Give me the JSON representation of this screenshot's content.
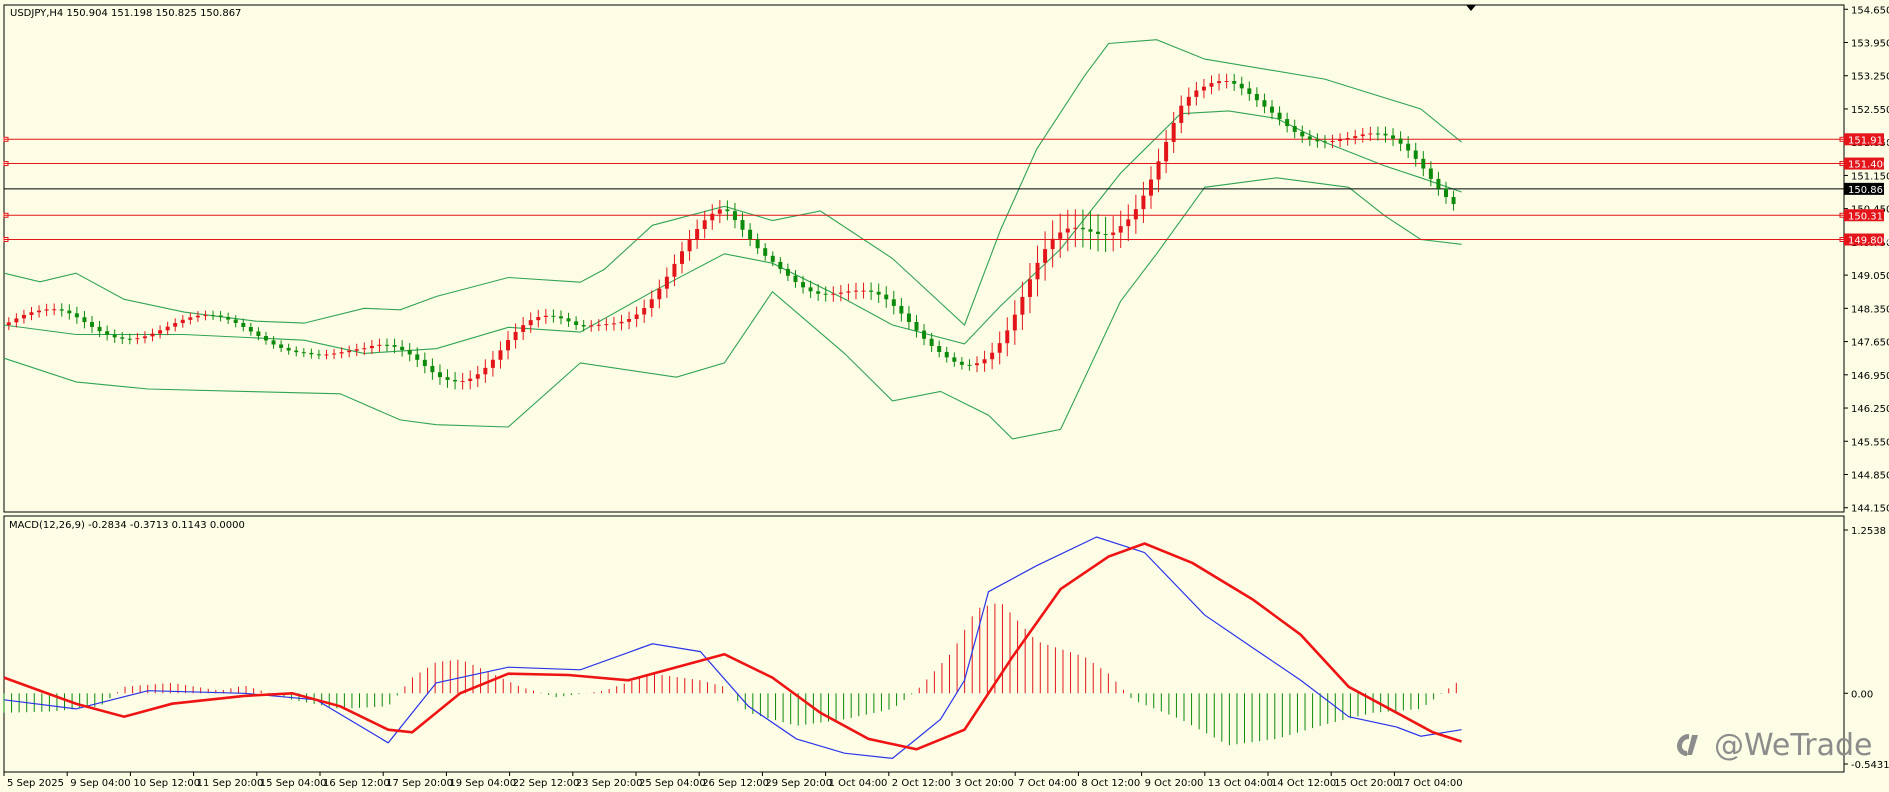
{
  "colors": {
    "background": "#fdfde6",
    "frame": "#000000",
    "bull": "#0b8a0b",
    "bear": "#e3151a",
    "bands": "#31a354",
    "level": "#e3151a",
    "price_line": "#000000",
    "macd": "#2a35e8",
    "signal": "#ef1414",
    "hist_pos": "#e3151a",
    "hist_neg": "#0b8a0b",
    "watermark": "#8c8c8c"
  },
  "price_panel": {
    "header": "USDJPY,H4  150.904 151.198 150.825 150.867",
    "y_ticks": [
      "154.650",
      "153.950",
      "153.250",
      "152.550",
      "151.850",
      "151.150",
      "150.450",
      "149.750",
      "149.050",
      "148.350",
      "147.650",
      "146.950",
      "146.250",
      "145.550",
      "144.850",
      "144.150"
    ],
    "current_price": "150.867",
    "levels": [
      "151.911",
      "151.400",
      "150.311",
      "149.800"
    ],
    "ylim": [
      144.06,
      154.74
    ]
  },
  "macd_panel": {
    "header": "MACD(12,26,9) -0.2834 -0.3713 0.1143 0.0000",
    "y_ticks": [
      "1.2538",
      "0.00",
      "-0.5431"
    ],
    "ylim": [
      -0.5431,
      1.2538
    ]
  },
  "x_labels": [
    "5 Sep 2025",
    "9 Sep 04:00",
    "10 Sep 12:00",
    "11 Sep 20:00",
    "15 Sep 04:00",
    "16 Sep 12:00",
    "17 Sep 20:00",
    "19 Sep 04:00",
    "22 Sep 12:00",
    "23 Sep 20:00",
    "25 Sep 04:00",
    "26 Sep 12:00",
    "29 Sep 20:00",
    "1 Oct 04:00",
    "2 Oct 12:00",
    "3 Oct 20:00",
    "7 Oct 04:00",
    "8 Oct 12:00",
    "9 Oct 20:00",
    "13 Oct 04:00",
    "14 Oct 12:00",
    "15 Oct 20:00",
    "17 Oct 04:00"
  ],
  "watermark": "@WeTrade",
  "chart_data": {
    "type": "candlestick",
    "symbol": "USDJPY,H4",
    "bollinger": {
      "upper": [
        [
          0,
          149.09
        ],
        [
          30,
          148.91
        ],
        [
          60,
          149.09
        ],
        [
          100,
          148.54
        ],
        [
          150,
          148.27
        ],
        [
          210,
          148.08
        ],
        [
          250,
          148.04
        ],
        [
          300,
          148.35
        ],
        [
          330,
          148.32
        ],
        [
          360,
          148.6
        ],
        [
          420,
          149.0
        ],
        [
          480,
          148.9
        ],
        [
          500,
          149.17
        ],
        [
          540,
          150.1
        ],
        [
          600,
          150.5
        ],
        [
          640,
          150.2
        ],
        [
          680,
          150.4
        ],
        [
          740,
          149.4
        ],
        [
          800,
          148.0
        ],
        [
          830,
          150.0
        ],
        [
          860,
          151.7
        ],
        [
          900,
          153.25
        ],
        [
          920,
          153.93
        ],
        [
          960,
          154.01
        ],
        [
          1000,
          153.6
        ],
        [
          1100,
          153.18
        ],
        [
          1180,
          152.55
        ],
        [
          1214,
          151.85
        ]
      ],
      "middle": [
        [
          0,
          148.0
        ],
        [
          60,
          147.8
        ],
        [
          150,
          147.8
        ],
        [
          250,
          147.68
        ],
        [
          300,
          147.4
        ],
        [
          360,
          147.5
        ],
        [
          420,
          147.95
        ],
        [
          480,
          147.85
        ],
        [
          540,
          148.7
        ],
        [
          600,
          149.5
        ],
        [
          640,
          149.3
        ],
        [
          700,
          148.55
        ],
        [
          740,
          148.0
        ],
        [
          800,
          147.6
        ],
        [
          830,
          148.4
        ],
        [
          880,
          149.6
        ],
        [
          930,
          151.2
        ],
        [
          980,
          152.45
        ],
        [
          1020,
          152.51
        ],
        [
          1060,
          152.35
        ],
        [
          1100,
          151.85
        ],
        [
          1150,
          151.35
        ],
        [
          1180,
          151.1
        ],
        [
          1214,
          150.8
        ]
      ],
      "lower": [
        [
          0,
          147.3
        ],
        [
          60,
          146.8
        ],
        [
          120,
          146.65
        ],
        [
          200,
          146.6
        ],
        [
          280,
          146.55
        ],
        [
          330,
          146.0
        ],
        [
          360,
          145.9
        ],
        [
          420,
          145.85
        ],
        [
          480,
          147.2
        ],
        [
          560,
          146.9
        ],
        [
          600,
          147.2
        ],
        [
          640,
          148.7
        ],
        [
          700,
          147.4
        ],
        [
          740,
          146.4
        ],
        [
          780,
          146.6
        ],
        [
          820,
          146.1
        ],
        [
          840,
          145.6
        ],
        [
          880,
          145.8
        ],
        [
          930,
          148.5
        ],
        [
          960,
          149.5
        ],
        [
          1000,
          150.9
        ],
        [
          1060,
          151.1
        ],
        [
          1120,
          150.9
        ],
        [
          1150,
          150.3
        ],
        [
          1180,
          149.8
        ],
        [
          1214,
          149.7
        ]
      ]
    },
    "candles": [
      [
        8,
        148.2,
        148.33,
        148.08,
        148.47
      ],
      [
        15,
        148.27,
        148.18,
        148.05,
        148.43
      ],
      [
        22,
        148.16,
        147.85,
        147.78,
        148.26
      ],
      [
        29,
        147.84,
        147.78,
        147.62,
        147.98
      ],
      [
        36,
        147.74,
        147.64,
        147.56,
        147.83
      ],
      [
        43,
        147.64,
        147.58,
        147.49,
        147.76
      ],
      [
        50,
        147.56,
        147.49,
        147.38,
        147.63
      ],
      [
        57,
        147.47,
        147.41,
        147.28,
        147.53
      ],
      [
        64,
        147.39,
        147.03,
        146.92,
        147.46
      ],
      [
        71,
        147.04,
        146.9,
        146.78,
        147.11
      ],
      [
        78,
        146.92,
        146.84,
        146.73,
        147.0
      ],
      [
        85,
        146.86,
        146.73,
        146.62,
        146.96
      ],
      [
        92,
        146.75,
        146.7,
        146.6,
        146.85
      ],
      [
        99,
        146.72,
        146.58,
        146.46,
        146.78
      ],
      [
        106,
        146.6,
        146.53,
        146.43,
        146.65
      ],
      [
        113,
        146.53,
        146.49,
        146.38,
        146.6
      ],
      [
        120,
        146.47,
        146.44,
        146.3,
        146.55
      ],
      [
        127,
        146.45,
        146.36,
        146.3,
        146.54
      ],
      [
        134,
        146.37,
        146.33,
        146.24,
        146.44
      ],
      [
        141,
        146.37,
        146.48,
        146.3,
        146.55
      ],
      [
        148,
        146.48,
        146.58,
        146.43,
        146.65
      ],
      [
        155,
        146.57,
        146.49,
        146.39,
        146.67
      ],
      [
        162,
        146.5,
        146.45,
        146.36,
        146.58
      ],
      [
        169,
        146.45,
        146.4,
        146.3,
        146.52
      ],
      [
        176,
        146.42,
        146.37,
        146.28,
        146.47
      ],
      [
        183,
        146.36,
        146.3,
        146.2,
        146.4
      ],
      [
        190,
        146.32,
        146.28,
        146.16,
        146.39
      ],
      [
        197,
        146.3,
        146.38,
        146.22,
        146.48
      ],
      [
        204,
        146.38,
        146.52,
        146.3,
        146.6
      ],
      [
        211,
        146.52,
        146.6,
        146.44,
        146.7
      ],
      [
        218,
        146.61,
        146.72,
        146.55,
        146.82
      ],
      [
        225,
        146.72,
        146.85,
        146.65,
        146.94
      ],
      [
        232,
        146.84,
        146.99,
        146.78,
        147.08
      ],
      [
        239,
        146.98,
        147.11,
        146.9,
        147.2
      ],
      [
        246,
        147.1,
        147.22,
        147.03,
        147.31
      ],
      [
        253,
        147.22,
        147.3,
        147.12,
        147.4
      ],
      [
        260,
        147.31,
        147.42,
        147.22,
        147.52
      ],
      [
        267,
        147.41,
        147.51,
        147.33,
        147.6
      ],
      [
        274,
        147.51,
        147.6,
        147.44,
        147.72
      ],
      [
        281,
        147.61,
        147.7,
        147.53,
        147.78
      ],
      [
        288,
        147.7,
        147.85,
        147.62,
        147.93
      ],
      [
        295,
        147.86,
        147.98,
        147.78,
        148.08
      ],
      [
        302,
        147.99,
        148.13,
        147.92,
        148.2
      ],
      [
        309,
        148.13,
        148.28,
        148.05,
        148.36
      ],
      [
        316,
        148.28,
        148.43,
        148.2,
        148.5
      ],
      [
        323,
        148.44,
        148.58,
        148.36,
        148.66
      ],
      [
        330,
        148.58,
        148.72,
        148.5,
        148.8
      ],
      [
        337,
        148.72,
        148.85,
        148.64,
        148.95
      ],
      [
        344,
        148.86,
        149.02,
        148.78,
        149.12
      ],
      [
        351,
        149.02,
        149.18,
        148.95,
        149.28
      ],
      [
        358,
        149.18,
        149.3,
        149.1,
        149.4
      ],
      [
        365,
        149.29,
        149.42,
        149.22,
        149.52
      ],
      [
        372,
        149.42,
        149.53,
        149.33,
        149.62
      ],
      [
        379,
        149.54,
        149.62,
        149.45,
        149.72
      ],
      [
        386,
        149.62,
        149.7,
        149.55,
        149.78
      ],
      [
        393,
        149.7,
        149.77,
        149.62,
        149.85
      ],
      [
        400,
        149.77,
        149.83,
        149.7,
        149.92
      ],
      [
        407,
        149.84,
        149.9,
        149.76,
        149.99
      ],
      [
        414,
        149.9,
        149.93,
        149.82,
        150.02
      ],
      [
        421,
        149.93,
        149.95,
        149.86,
        150.03
      ],
      [
        428,
        149.95,
        149.98,
        149.88,
        150.06
      ],
      [
        435,
        149.98,
        150.01,
        149.9,
        150.08
      ],
      [
        442,
        150.01,
        150.05,
        149.94,
        150.12
      ],
      [
        449,
        150.05,
        150.1,
        149.99,
        150.17
      ],
      [
        456,
        150.1,
        150.13,
        150.03,
        150.2
      ],
      [
        463,
        150.13,
        150.12,
        150.04,
        150.2
      ],
      [
        470,
        150.12,
        150.08,
        150.0,
        150.17
      ],
      [
        477,
        150.08,
        150.05,
        149.97,
        150.14
      ],
      [
        484,
        150.05,
        150.02,
        149.93,
        150.11
      ],
      [
        491,
        150.02,
        149.98,
        149.9,
        150.08
      ],
      [
        498,
        149.98,
        149.94,
        149.86,
        150.05
      ],
      [
        505,
        149.95,
        149.92,
        149.84,
        150.0
      ]
    ],
    "macd": [
      [
        0,
        -0.05
      ],
      [
        60,
        -0.12
      ],
      [
        120,
        0.02
      ],
      [
        200,
        0.0
      ],
      [
        260,
        -0.05
      ],
      [
        320,
        -0.38
      ],
      [
        360,
        0.08
      ],
      [
        420,
        0.2
      ],
      [
        480,
        0.18
      ],
      [
        540,
        0.38
      ],
      [
        580,
        0.32
      ],
      [
        620,
        -0.1
      ],
      [
        660,
        -0.35
      ],
      [
        700,
        -0.46
      ],
      [
        740,
        -0.5
      ],
      [
        780,
        -0.2
      ],
      [
        800,
        0.1
      ],
      [
        820,
        0.78
      ],
      [
        860,
        0.98
      ],
      [
        910,
        1.2
      ],
      [
        950,
        1.08
      ],
      [
        1000,
        0.6
      ],
      [
        1040,
        0.35
      ],
      [
        1080,
        0.1
      ],
      [
        1120,
        -0.18
      ],
      [
        1160,
        -0.26
      ],
      [
        1180,
        -0.33
      ],
      [
        1214,
        -0.28
      ]
    ],
    "signal": [
      [
        0,
        0.12
      ],
      [
        60,
        -0.08
      ],
      [
        100,
        -0.18
      ],
      [
        140,
        -0.08
      ],
      [
        200,
        -0.02
      ],
      [
        240,
        0.0
      ],
      [
        280,
        -0.1
      ],
      [
        320,
        -0.28
      ],
      [
        340,
        -0.3
      ],
      [
        380,
        0.0
      ],
      [
        420,
        0.15
      ],
      [
        470,
        0.14
      ],
      [
        520,
        0.1
      ],
      [
        560,
        0.2
      ],
      [
        600,
        0.3
      ],
      [
        640,
        0.12
      ],
      [
        680,
        -0.15
      ],
      [
        720,
        -0.35
      ],
      [
        760,
        -0.43
      ],
      [
        800,
        -0.28
      ],
      [
        840,
        0.28
      ],
      [
        880,
        0.8
      ],
      [
        920,
        1.05
      ],
      [
        950,
        1.15
      ],
      [
        990,
        1.0
      ],
      [
        1040,
        0.72
      ],
      [
        1080,
        0.45
      ],
      [
        1120,
        0.05
      ],
      [
        1160,
        -0.15
      ],
      [
        1190,
        -0.3
      ],
      [
        1214,
        -0.37
      ]
    ],
    "hist": [
      [
        0,
        -0.15
      ],
      [
        40,
        -0.14
      ],
      [
        80,
        -0.1
      ],
      [
        100,
        0.05
      ],
      [
        140,
        0.08
      ],
      [
        180,
        0.02
      ],
      [
        200,
        0.06
      ],
      [
        240,
        -0.05
      ],
      [
        280,
        -0.12
      ],
      [
        320,
        -0.1
      ],
      [
        340,
        0.12
      ],
      [
        360,
        0.24
      ],
      [
        380,
        0.26
      ],
      [
        400,
        0.18
      ],
      [
        430,
        0.05
      ],
      [
        460,
        -0.03
      ],
      [
        500,
        0.02
      ],
      [
        540,
        0.15
      ],
      [
        580,
        0.1
      ],
      [
        600,
        0.05
      ],
      [
        620,
        -0.15
      ],
      [
        660,
        -0.25
      ],
      [
        700,
        -0.2
      ],
      [
        740,
        -0.12
      ],
      [
        760,
        0.02
      ],
      [
        790,
        0.32
      ],
      [
        810,
        0.65
      ],
      [
        830,
        0.7
      ],
      [
        860,
        0.4
      ],
      [
        900,
        0.28
      ],
      [
        920,
        0.15
      ],
      [
        940,
        -0.05
      ],
      [
        980,
        -0.2
      ],
      [
        1000,
        -0.3
      ],
      [
        1020,
        -0.4
      ],
      [
        1060,
        -0.35
      ],
      [
        1100,
        -0.24
      ],
      [
        1140,
        -0.15
      ],
      [
        1180,
        -0.12
      ],
      [
        1214,
        0.11
      ]
    ],
    "x_axis_labels": [
      "5 Sep 2025",
      "9 Sep 04:00",
      "10 Sep 12:00",
      "11 Sep 20:00",
      "15 Sep 04:00",
      "16 Sep 12:00",
      "17 Sep 20:00",
      "19 Sep 04:00",
      "22 Sep 12:00",
      "23 Sep 20:00",
      "25 Sep 04:00",
      "26 Sep 12:00",
      "29 Sep 20:00",
      "1 Oct 04:00",
      "2 Oct 12:00",
      "3 Oct 20:00",
      "7 Oct 04:00",
      "8 Oct 12:00",
      "9 Oct 20:00",
      "13 Oct 04:00",
      "14 Oct 12:00",
      "15 Oct 20:00",
      "17 Oct 04:00"
    ],
    "price_ylim": [
      144.06,
      154.74
    ],
    "macd_ylim": [
      -0.5431,
      1.2538
    ]
  }
}
